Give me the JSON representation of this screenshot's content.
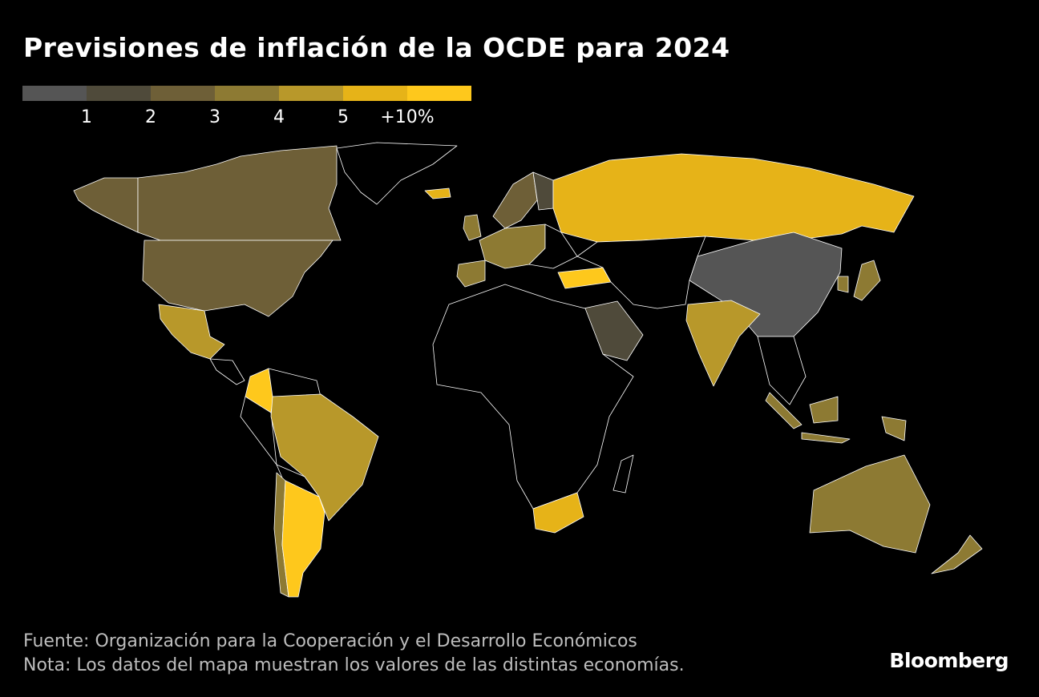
{
  "title": "Previsiones de inflación de la OCDE para 2024",
  "legend": {
    "colors": [
      "#555555",
      "#4f4a3a",
      "#6e5f37",
      "#8d7a33",
      "#b8982a",
      "#e6b318",
      "#fec81c"
    ],
    "labels": [
      "1",
      "2",
      "3",
      "4",
      "5",
      "+10%"
    ]
  },
  "no_data_color": "#000000",
  "map_data": [
    {
      "region": "Canada",
      "bucket": 2
    },
    {
      "region": "United States",
      "bucket": 2
    },
    {
      "region": "Alaska",
      "bucket": 2
    },
    {
      "region": "Mexico",
      "bucket": 4
    },
    {
      "region": "Colombia",
      "bucket": 6
    },
    {
      "region": "Brazil",
      "bucket": 4
    },
    {
      "region": "Argentina",
      "bucket": 6
    },
    {
      "region": "Chile",
      "bucket": 3
    },
    {
      "region": "Russia",
      "bucket": 5
    },
    {
      "region": "Turkey",
      "bucket": 6
    },
    {
      "region": "China",
      "bucket": 0
    },
    {
      "region": "India",
      "bucket": 4
    },
    {
      "region": "Saudi Arabia",
      "bucket": 1
    },
    {
      "region": "Australia",
      "bucket": 3
    },
    {
      "region": "South Africa",
      "bucket": 5
    },
    {
      "region": "Indonesia",
      "bucket": 3
    },
    {
      "region": "Japan",
      "bucket": 3
    },
    {
      "region": "South Korea",
      "bucket": 3
    },
    {
      "region": "New Zealand",
      "bucket": 3
    },
    {
      "region": "Iceland",
      "bucket": 5
    },
    {
      "region": "Western Europe",
      "bucket": 3
    },
    {
      "region": "Nordics",
      "bucket": 2
    },
    {
      "region": "Finland",
      "bucket": 1
    },
    {
      "region": "Iberia",
      "bucket": 3
    },
    {
      "region": "United Kingdom",
      "bucket": 3
    }
  ],
  "footer": {
    "source": "Fuente: Organización para la Cooperación y el Desarrollo Económicos",
    "note": "Nota: Los datos del mapa muestran los valores de las distintas economías."
  },
  "brand": "Bloomberg"
}
